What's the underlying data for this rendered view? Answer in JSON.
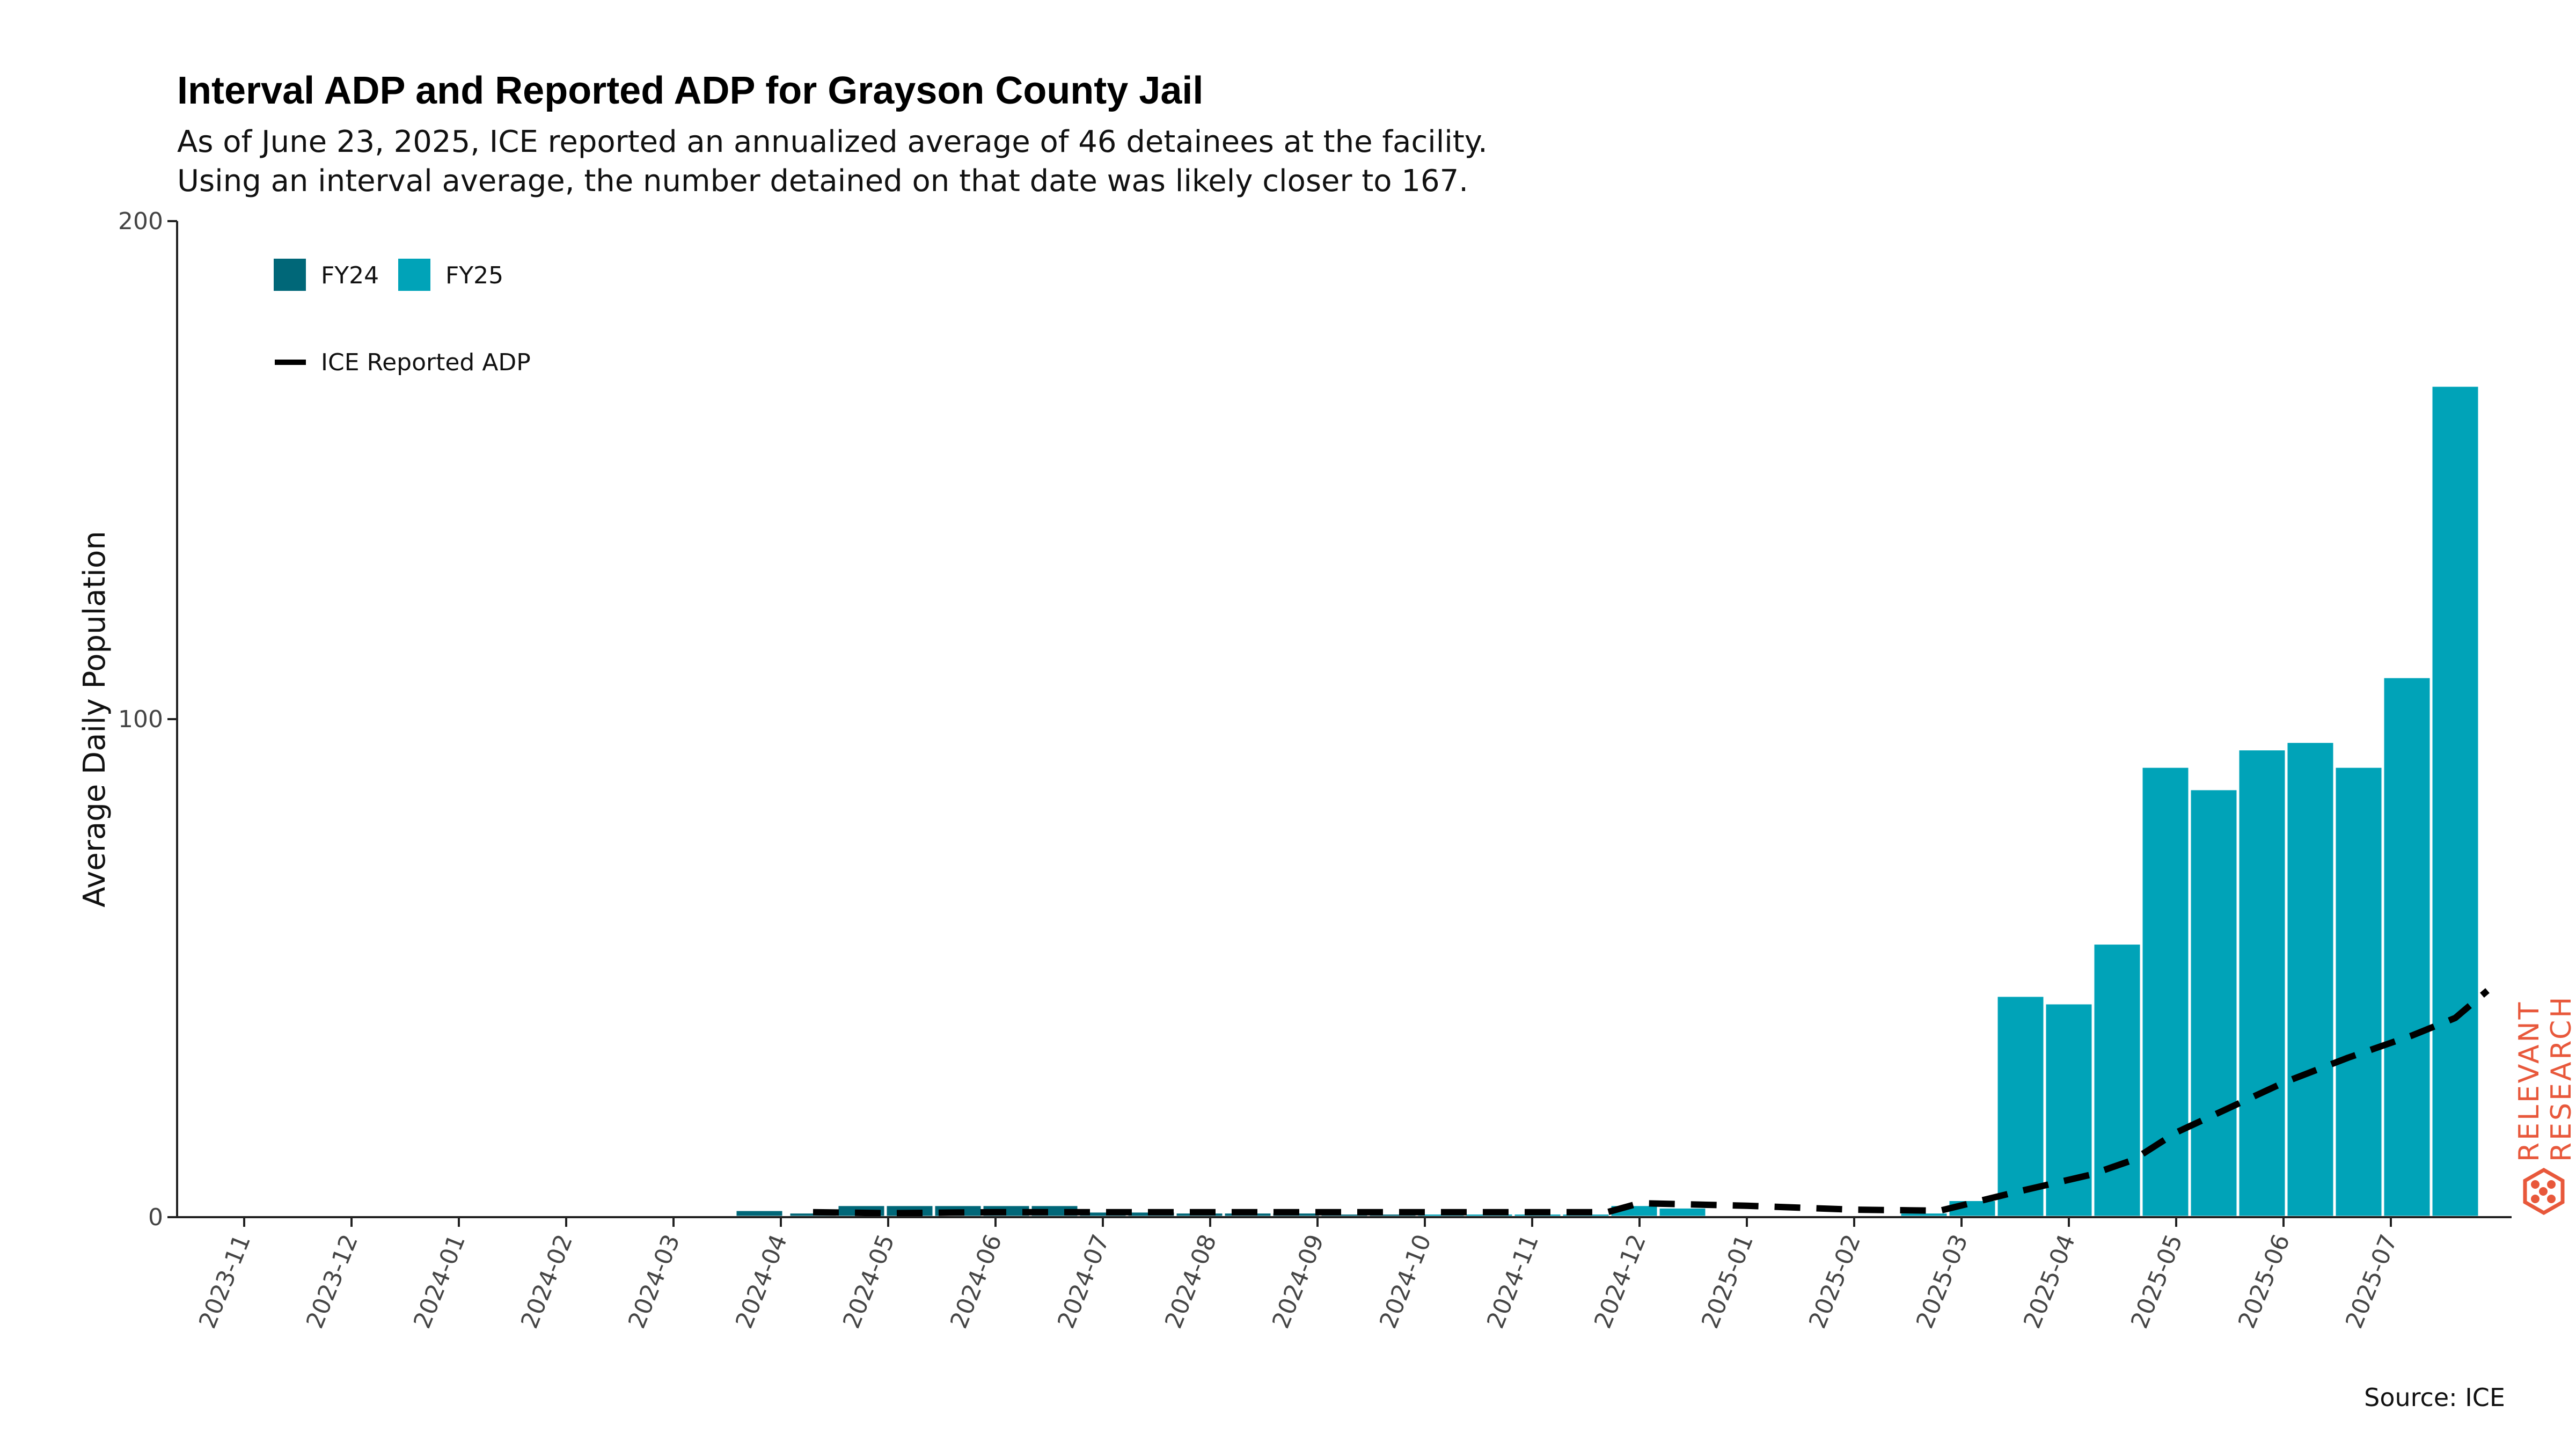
{
  "chart_data": {
    "type": "bar",
    "title": "Interval ADP and Reported ADP for Grayson County Jail",
    "subtitle_lines": [
      "As of June 23, 2025, ICE reported an annualized average of 46 detainees at the facility.",
      "Using an interval average, the number detained on that date was likely closer to 167."
    ],
    "ylabel": "Average Daily Population",
    "ylim": [
      0,
      200
    ],
    "yticks": [
      0,
      100,
      200
    ],
    "xticks": [
      "2023-11",
      "2023-12",
      "2024-01",
      "2024-02",
      "2024-03",
      "2024-04",
      "2024-05",
      "2024-06",
      "2024-07",
      "2024-08",
      "2024-09",
      "2024-10",
      "2024-11",
      "2024-12",
      "2025-01",
      "2025-02",
      "2025-03",
      "2025-04",
      "2025-05",
      "2025-06",
      "2025-07"
    ],
    "bar_series": [
      {
        "name": "FY24",
        "color": "#006778"
      },
      {
        "name": "FY25",
        "color": "#00a3b8"
      }
    ],
    "bars": [
      {
        "x": 4.3,
        "y": 0.4,
        "fy": "FY24"
      },
      {
        "x": 4.8,
        "y": 1.5,
        "fy": "FY24"
      },
      {
        "x": 5.3,
        "y": 1.0,
        "fy": "FY24"
      },
      {
        "x": 5.75,
        "y": 2.5,
        "fy": "FY24"
      },
      {
        "x": 6.2,
        "y": 2.5,
        "fy": "FY24"
      },
      {
        "x": 6.65,
        "y": 2.5,
        "fy": "FY24"
      },
      {
        "x": 7.1,
        "y": 2.5,
        "fy": "FY24"
      },
      {
        "x": 7.55,
        "y": 2.5,
        "fy": "FY24"
      },
      {
        "x": 8.0,
        "y": 1.2,
        "fy": "FY24"
      },
      {
        "x": 8.45,
        "y": 1.2,
        "fy": "FY24"
      },
      {
        "x": 8.9,
        "y": 1.0,
        "fy": "FY24"
      },
      {
        "x": 9.35,
        "y": 1.0,
        "fy": "FY24"
      },
      {
        "x": 9.8,
        "y": 1.0,
        "fy": "FY24"
      },
      {
        "x": 10.25,
        "y": 0.8,
        "fy": "FY24"
      },
      {
        "x": 10.7,
        "y": 0.8,
        "fy": "FY24"
      },
      {
        "x": 11.15,
        "y": 0.8,
        "fy": "FY25"
      },
      {
        "x": 11.6,
        "y": 0.8,
        "fy": "FY25"
      },
      {
        "x": 12.05,
        "y": 0.8,
        "fy": "FY25"
      },
      {
        "x": 12.5,
        "y": 0.8,
        "fy": "FY25"
      },
      {
        "x": 12.95,
        "y": 2.5,
        "fy": "FY25"
      },
      {
        "x": 13.4,
        "y": 2.0,
        "fy": "FY25"
      },
      {
        "x": 13.85,
        "y": 0.5,
        "fy": "FY25"
      },
      {
        "x": 14.3,
        "y": 0.5,
        "fy": "FY25"
      },
      {
        "x": 14.75,
        "y": 0.5,
        "fy": "FY25"
      },
      {
        "x": 15.2,
        "y": 0.5,
        "fy": "FY25"
      },
      {
        "x": 15.65,
        "y": 1.0,
        "fy": "FY25"
      },
      {
        "x": 16.1,
        "y": 3.5,
        "fy": "FY25"
      },
      {
        "x": 16.55,
        "y": 44.5,
        "fy": "FY25"
      },
      {
        "x": 17.0,
        "y": 43.0,
        "fy": "FY25"
      },
      {
        "x": 17.45,
        "y": 55.0,
        "fy": "FY25"
      },
      {
        "x": 17.9,
        "y": 90.5,
        "fy": "FY25"
      },
      {
        "x": 18.35,
        "y": 86.0,
        "fy": "FY25"
      },
      {
        "x": 18.8,
        "y": 94.0,
        "fy": "FY25"
      },
      {
        "x": 19.25,
        "y": 95.5,
        "fy": "FY25"
      },
      {
        "x": 19.7,
        "y": 90.5,
        "fy": "FY25"
      },
      {
        "x": 20.15,
        "y": 108.5,
        "fy": "FY25"
      },
      {
        "x": 20.6,
        "y": 167.0,
        "fy": "FY25"
      }
    ],
    "bar_width": 0.45,
    "line_series": {
      "name": "ICE Reported ADP",
      "color": "#000000",
      "style": "dashed",
      "points": [
        [
          5.3,
          1.0
        ],
        [
          6.0,
          0.8
        ],
        [
          7.0,
          1.0
        ],
        [
          8.0,
          1.0
        ],
        [
          9.0,
          1.0
        ],
        [
          10.0,
          1.0
        ],
        [
          11.0,
          1.0
        ],
        [
          12.0,
          1.0
        ],
        [
          12.7,
          1.0
        ],
        [
          13.0,
          2.8
        ],
        [
          14.0,
          2.3
        ],
        [
          15.0,
          1.5
        ],
        [
          15.8,
          1.3
        ],
        [
          16.5,
          5.0
        ],
        [
          17.2,
          8.5
        ],
        [
          17.6,
          11.5
        ],
        [
          18.0,
          17.0
        ],
        [
          18.5,
          22.0
        ],
        [
          19.0,
          27.0
        ],
        [
          19.6,
          32.0
        ],
        [
          20.2,
          36.5
        ],
        [
          20.6,
          40.0
        ],
        [
          20.9,
          45.5
        ]
      ]
    },
    "legend": {
      "bar_entries": [
        "FY24",
        "FY25"
      ],
      "line_entry": "ICE Reported ADP",
      "position": "top-left"
    },
    "source": "Source: ICE",
    "brand": [
      "RELEVANT",
      "RESEARCH"
    ]
  }
}
